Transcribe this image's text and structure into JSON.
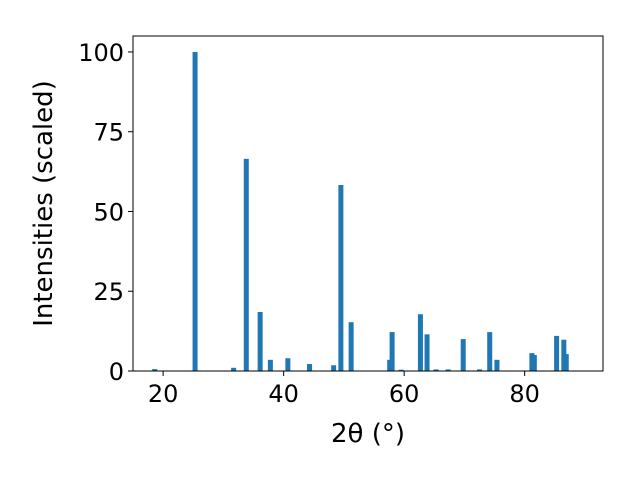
{
  "chart_data": {
    "type": "bar",
    "xlabel": "2θ (°)",
    "ylabel": "Intensities (scaled)",
    "xlim": [
      15,
      93
    ],
    "ylim": [
      0,
      105
    ],
    "x_ticks": [
      20,
      40,
      60,
      80
    ],
    "y_ticks": [
      0,
      25,
      50,
      75,
      100
    ],
    "grid": false,
    "bar_color": "#1f77b4",
    "bars": [
      {
        "x": 18.6,
        "y": 0.6
      },
      {
        "x": 25.3,
        "y": 100
      },
      {
        "x": 31.7,
        "y": 1.0
      },
      {
        "x": 33.8,
        "y": 66.5
      },
      {
        "x": 36.1,
        "y": 18.5
      },
      {
        "x": 37.8,
        "y": 3.5
      },
      {
        "x": 40.7,
        "y": 4.0
      },
      {
        "x": 44.3,
        "y": 2.2
      },
      {
        "x": 48.3,
        "y": 1.8
      },
      {
        "x": 49.5,
        "y": 58.3
      },
      {
        "x": 51.2,
        "y": 15.3
      },
      {
        "x": 57.6,
        "y": 3.5
      },
      {
        "x": 58.0,
        "y": 12.2
      },
      {
        "x": 59.5,
        "y": 0.4
      },
      {
        "x": 62.7,
        "y": 17.8
      },
      {
        "x": 63.8,
        "y": 11.5
      },
      {
        "x": 65.3,
        "y": 0.5
      },
      {
        "x": 67.3,
        "y": 0.5
      },
      {
        "x": 69.8,
        "y": 10.0
      },
      {
        "x": 72.5,
        "y": 0.5
      },
      {
        "x": 74.2,
        "y": 12.2
      },
      {
        "x": 75.4,
        "y": 3.5
      },
      {
        "x": 81.2,
        "y": 5.6
      },
      {
        "x": 81.6,
        "y": 5.0
      },
      {
        "x": 85.3,
        "y": 11.0
      },
      {
        "x": 86.5,
        "y": 9.8
      },
      {
        "x": 86.9,
        "y": 5.3
      }
    ]
  }
}
